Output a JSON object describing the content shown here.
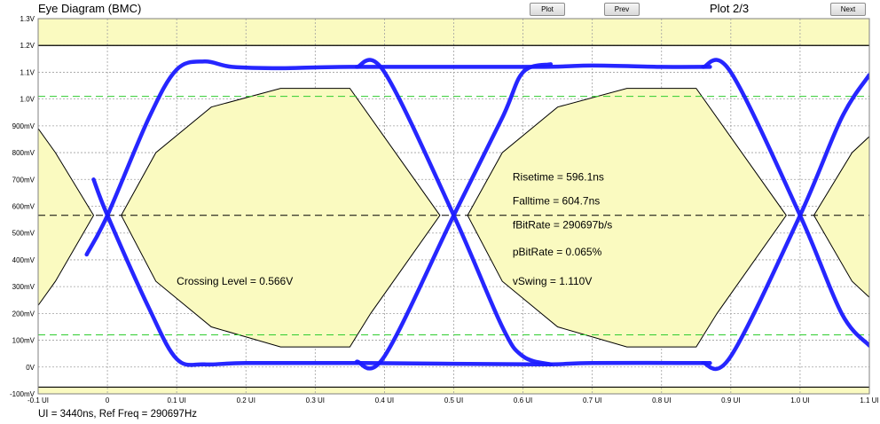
{
  "header": {
    "title": "Eye Diagram (BMC)",
    "plot_label": "Plot",
    "prev_label": "Prev",
    "next_label": "Next",
    "plot_indicator": "Plot 2/3"
  },
  "footer": {
    "info": "UI = 3440ns, Ref Freq = 290697Hz"
  },
  "colors": {
    "trace": "#1a1aff",
    "mask_fill": "#fafac0",
    "limit_green": "#2ecc2e",
    "crossing": "#000000",
    "grid": "#a0a0a0"
  },
  "chart_data": {
    "type": "line",
    "title": "Eye Diagram (BMC)",
    "xlim": [
      -0.1,
      1.1
    ],
    "ylim": [
      -0.1,
      1.3
    ],
    "x_ticks": [
      {
        "value": -0.1,
        "label": "-0.1 UI"
      },
      {
        "value": 0,
        "label": "0"
      },
      {
        "value": 0.1,
        "label": "0.1 UI"
      },
      {
        "value": 0.2,
        "label": "0.2 UI"
      },
      {
        "value": 0.3,
        "label": "0.3 UI"
      },
      {
        "value": 0.4,
        "label": "0.4 UI"
      },
      {
        "value": 0.5,
        "label": "0.5 UI"
      },
      {
        "value": 0.6,
        "label": "0.6 UI"
      },
      {
        "value": 0.7,
        "label": "0.7 UI"
      },
      {
        "value": 0.8,
        "label": "0.8 UI"
      },
      {
        "value": 0.9,
        "label": "0.9 UI"
      },
      {
        "value": 1.0,
        "label": "1.0 UI"
      },
      {
        "value": 1.1,
        "label": "1.1 UI"
      }
    ],
    "y_ticks": [
      {
        "value": 1.3,
        "label": "1.3V"
      },
      {
        "value": 1.2,
        "label": "1.2V"
      },
      {
        "value": 1.1,
        "label": "1.1V"
      },
      {
        "value": 1.0,
        "label": "1.0V"
      },
      {
        "value": 0.9,
        "label": "900mV"
      },
      {
        "value": 0.8,
        "label": "800mV"
      },
      {
        "value": 0.7,
        "label": "700mV"
      },
      {
        "value": 0.6,
        "label": "600mV"
      },
      {
        "value": 0.5,
        "label": "500mV"
      },
      {
        "value": 0.4,
        "label": "400mV"
      },
      {
        "value": 0.3,
        "label": "300mV"
      },
      {
        "value": 0.2,
        "label": "200mV"
      },
      {
        "value": 0.1,
        "label": "100mV"
      },
      {
        "value": 0.0,
        "label": "0V"
      },
      {
        "value": -0.1,
        "label": "-100mV"
      }
    ],
    "grid": true,
    "limits": {
      "upper_solid": 1.2,
      "lower_solid": -0.075,
      "upper_green": 1.01,
      "lower_green": 0.12,
      "crossing": 0.566
    },
    "masks": [
      [
        [
          -0.1,
          0.89
        ],
        [
          -0.075,
          0.8
        ],
        [
          -0.02,
          0.566
        ],
        [
          -0.075,
          0.32
        ],
        [
          -0.1,
          0.23
        ]
      ],
      [
        [
          0.02,
          0.566
        ],
        [
          0.07,
          0.8
        ],
        [
          0.15,
          0.97
        ],
        [
          0.25,
          1.04
        ],
        [
          0.35,
          1.04
        ],
        [
          0.48,
          0.566
        ],
        [
          0.38,
          0.2
        ],
        [
          0.35,
          0.075
        ],
        [
          0.25,
          0.075
        ],
        [
          0.15,
          0.15
        ],
        [
          0.07,
          0.32
        ]
      ],
      [
        [
          0.52,
          0.566
        ],
        [
          0.57,
          0.8
        ],
        [
          0.65,
          0.97
        ],
        [
          0.75,
          1.04
        ],
        [
          0.85,
          1.04
        ],
        [
          0.98,
          0.566
        ],
        [
          0.88,
          0.2
        ],
        [
          0.85,
          0.075
        ],
        [
          0.75,
          0.075
        ],
        [
          0.65,
          0.15
        ],
        [
          0.57,
          0.32
        ]
      ],
      [
        [
          1.1,
          0.86
        ],
        [
          1.075,
          0.8
        ],
        [
          1.02,
          0.566
        ],
        [
          1.075,
          0.32
        ],
        [
          1.1,
          0.26
        ]
      ]
    ],
    "series": [
      {
        "values": [
          [
            -0.03,
            0.42
          ],
          [
            0.0,
            0.566
          ],
          [
            0.06,
            0.93
          ],
          [
            0.1,
            1.11
          ],
          [
            0.14,
            1.14
          ],
          [
            0.18,
            1.12
          ],
          [
            0.25,
            1.115
          ],
          [
            0.35,
            1.12
          ],
          [
            0.62,
            1.12
          ],
          [
            0.7,
            1.125
          ],
          [
            0.8,
            1.12
          ],
          [
            0.87,
            1.12
          ]
        ]
      },
      {
        "values": [
          [
            -0.02,
            0.7
          ],
          [
            0.0,
            0.566
          ],
          [
            0.06,
            0.22
          ],
          [
            0.1,
            0.03
          ],
          [
            0.14,
            0.01
          ],
          [
            0.2,
            0.015
          ],
          [
            0.37,
            0.015
          ],
          [
            0.62,
            0.01
          ],
          [
            0.7,
            0.015
          ],
          [
            0.87,
            0.015
          ]
        ]
      },
      {
        "values": [
          [
            0.36,
            1.12
          ],
          [
            0.4,
            1.1
          ],
          [
            0.5,
            0.566
          ],
          [
            0.57,
            0.15
          ],
          [
            0.6,
            0.04
          ],
          [
            0.64,
            0.01
          ]
        ]
      },
      {
        "values": [
          [
            0.36,
            0.02
          ],
          [
            0.4,
            0.04
          ],
          [
            0.5,
            0.566
          ],
          [
            0.57,
            0.93
          ],
          [
            0.6,
            1.1
          ],
          [
            0.64,
            1.13
          ]
        ]
      },
      {
        "values": [
          [
            0.86,
            1.12
          ],
          [
            0.9,
            1.1
          ],
          [
            1.0,
            0.566
          ],
          [
            1.06,
            0.2
          ],
          [
            1.1,
            0.08
          ]
        ]
      },
      {
        "values": [
          [
            0.86,
            0.015
          ],
          [
            0.9,
            0.04
          ],
          [
            1.0,
            0.566
          ],
          [
            1.06,
            0.93
          ],
          [
            1.1,
            1.09
          ]
        ]
      }
    ],
    "annotations": [
      {
        "text": "Crossing Level = 0.566V",
        "x": 0.1,
        "y": 0.32
      },
      {
        "text": "Risetime = 596.1ns",
        "x": 0.585,
        "y": 0.71
      },
      {
        "text": "Falltime = 604.7ns",
        "x": 0.585,
        "y": 0.62
      },
      {
        "text": "fBitRate = 290697b/s",
        "x": 0.585,
        "y": 0.53
      },
      {
        "text": "pBitRate = 0.065%",
        "x": 0.585,
        "y": 0.43
      },
      {
        "text": "vSwing = 1.110V",
        "x": 0.585,
        "y": 0.32
      }
    ]
  }
}
